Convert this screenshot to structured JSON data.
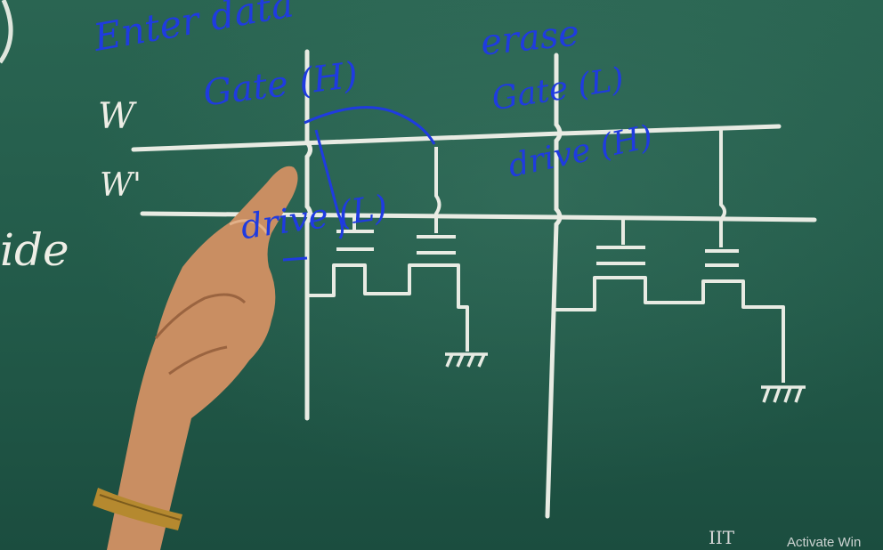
{
  "chalk_labels": {
    "w": "W",
    "w_prime": "W'",
    "side_fragment": "ide",
    "logo": "IIT"
  },
  "annotations": {
    "enter_data": "Enter data",
    "erase": "erase",
    "gate_h": "Gate (H)",
    "gate_l": "Gate (L)",
    "drive_h": "drive (H)",
    "drive_l": "drive (L)"
  },
  "overlay": {
    "activate_windows": "Activate Win"
  },
  "colors": {
    "board": "#225a49",
    "chalk": "#eeeee6",
    "ink": "#1f3be0",
    "skin": "#c98e62"
  }
}
